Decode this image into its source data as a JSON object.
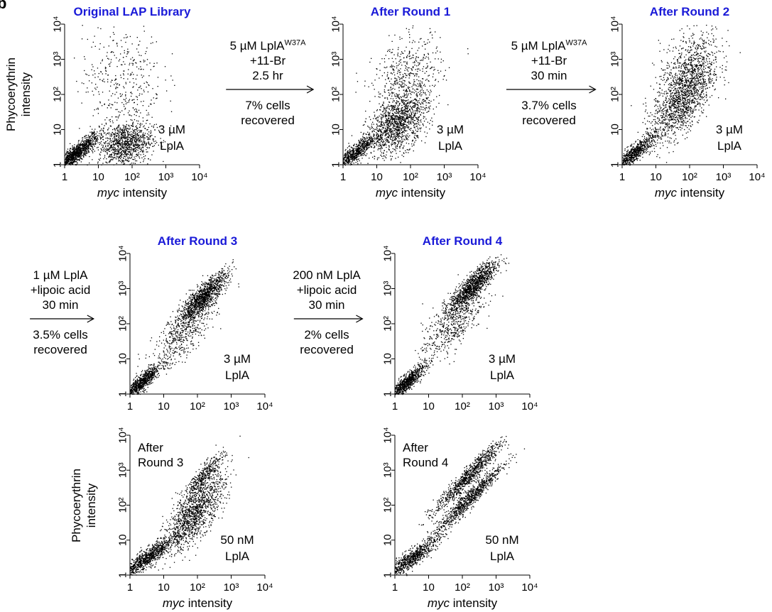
{
  "figure_label": "b",
  "chart_data": [
    {
      "type": "scatter",
      "title": "Original LAP Library",
      "xlabel_italic": "myc",
      "xlabel_rest": " intensity",
      "ylabel": [
        "Phycoerythrin",
        "intensity"
      ],
      "xscale": "log",
      "yscale": "log",
      "xlim": [
        1,
        10000
      ],
      "ylim": [
        1,
        10000
      ],
      "xticks": [
        "1",
        "10",
        "10²",
        "10³",
        "10⁴"
      ],
      "yticks": [
        "1",
        "10",
        "10²",
        "10³",
        "10⁴"
      ],
      "annotation": [
        "3 µM",
        "LplA"
      ],
      "populations": [
        {
          "x_center": 2,
          "y_center": 2,
          "spread_x": 0.35,
          "spread_y": 0.3,
          "corr": 0.9,
          "share": 0.45
        },
        {
          "x_center": 60,
          "y_center": 4,
          "spread_x": 0.4,
          "spread_y": 0.32,
          "corr": 0.2,
          "share": 0.4
        },
        {
          "x_center": 50,
          "y_center": 300,
          "spread_x": 0.6,
          "spread_y": 0.8,
          "corr": 0,
          "share": 0.15
        }
      ]
    },
    {
      "type": "scatter",
      "title": "After Round 1",
      "xlabel_italic": "myc",
      "xlabel_rest": " intensity",
      "xscale": "log",
      "yscale": "log",
      "xlim": [
        1,
        10000
      ],
      "ylim": [
        1,
        10000
      ],
      "xticks": [
        "1",
        "10",
        "10²",
        "10³",
        "10⁴"
      ],
      "yticks": [
        "1",
        "10",
        "10²",
        "10³",
        "10⁴"
      ],
      "annotation": [
        "3 µM",
        "LplA"
      ],
      "populations": [
        {
          "x_center": 2,
          "y_center": 2,
          "spread_x": 0.35,
          "spread_y": 0.3,
          "corr": 0.9,
          "share": 0.3
        },
        {
          "x_center": 40,
          "y_center": 15,
          "spread_x": 0.45,
          "spread_y": 0.45,
          "corr": 0.5,
          "share": 0.5
        },
        {
          "x_center": 80,
          "y_center": 300,
          "spread_x": 0.5,
          "spread_y": 0.6,
          "corr": 0.3,
          "share": 0.2
        }
      ]
    },
    {
      "type": "scatter",
      "title": "After Round 2",
      "xlabel_italic": "myc",
      "xlabel_rest": " intensity",
      "xscale": "log",
      "yscale": "log",
      "xlim": [
        1,
        10000
      ],
      "ylim": [
        1,
        10000
      ],
      "xticks": [
        "1",
        "10",
        "10²",
        "10³",
        "10⁴"
      ],
      "yticks": [
        "1",
        "10",
        "10²",
        "10³",
        "10⁴"
      ],
      "annotation": [
        "3 µM",
        "LplA"
      ],
      "populations": [
        {
          "x_center": 2,
          "y_center": 2,
          "spread_x": 0.35,
          "spread_y": 0.3,
          "corr": 0.9,
          "share": 0.3
        },
        {
          "x_center": 60,
          "y_center": 80,
          "spread_x": 0.45,
          "spread_y": 0.6,
          "corr": 0.6,
          "share": 0.55
        },
        {
          "x_center": 100,
          "y_center": 1000,
          "spread_x": 0.45,
          "spread_y": 0.5,
          "corr": 0.4,
          "share": 0.15
        }
      ]
    },
    {
      "type": "scatter",
      "title": "After Round 3",
      "xlabel_italic": "",
      "xlabel_rest": "",
      "xscale": "log",
      "yscale": "log",
      "xlim": [
        1,
        10000
      ],
      "ylim": [
        1,
        10000
      ],
      "xticks": [
        "1",
        "10",
        "10²",
        "10³",
        "10⁴"
      ],
      "yticks": [
        "1",
        "10",
        "10²",
        "10³",
        "10⁴"
      ],
      "annotation": [
        "3 µM",
        "LplA"
      ],
      "populations": [
        {
          "x_center": 2,
          "y_center": 2,
          "spread_x": 0.3,
          "spread_y": 0.28,
          "corr": 0.9,
          "share": 0.35
        },
        {
          "x_center": 150,
          "y_center": 600,
          "spread_x": 0.35,
          "spread_y": 0.35,
          "corr": 0.85,
          "share": 0.45
        },
        {
          "x_center": 40,
          "y_center": 60,
          "spread_x": 0.45,
          "spread_y": 0.5,
          "corr": 0.7,
          "share": 0.2
        }
      ]
    },
    {
      "type": "scatter",
      "title": "After Round 4",
      "xlabel_italic": "",
      "xlabel_rest": "",
      "xscale": "log",
      "yscale": "log",
      "xlim": [
        1,
        10000
      ],
      "ylim": [
        1,
        10000
      ],
      "xticks": [
        "1",
        "10",
        "10²",
        "10³",
        "10⁴"
      ],
      "yticks": [
        "1",
        "10",
        "10²",
        "10³",
        "10⁴"
      ],
      "annotation": [
        "3 µM",
        "LplA"
      ],
      "populations": [
        {
          "x_center": 2,
          "y_center": 2,
          "spread_x": 0.3,
          "spread_y": 0.28,
          "corr": 0.9,
          "share": 0.35
        },
        {
          "x_center": 200,
          "y_center": 1200,
          "spread_x": 0.35,
          "spread_y": 0.35,
          "corr": 0.85,
          "share": 0.45
        },
        {
          "x_center": 50,
          "y_center": 100,
          "spread_x": 0.45,
          "spread_y": 0.5,
          "corr": 0.7,
          "share": 0.2
        }
      ]
    },
    {
      "type": "scatter",
      "title": "",
      "xlabel_italic": "myc",
      "xlabel_rest": " intensity",
      "ylabel": [
        "Phycoerythrin",
        "intensity"
      ],
      "xscale": "log",
      "yscale": "log",
      "xlim": [
        1,
        10000
      ],
      "ylim": [
        1,
        10000
      ],
      "xticks": [
        "1",
        "10",
        "10²",
        "10³",
        "10⁴"
      ],
      "yticks": [
        "1",
        "10",
        "10²",
        "10³",
        "10⁴"
      ],
      "annotation": [
        "50 nM",
        "LplA"
      ],
      "inset_label": [
        "After",
        "Round 3"
      ],
      "populations": [
        {
          "x_center": 3,
          "y_center": 3,
          "spread_x": 0.4,
          "spread_y": 0.3,
          "corr": 0.9,
          "share": 0.35
        },
        {
          "x_center": 80,
          "y_center": 60,
          "spread_x": 0.45,
          "spread_y": 0.55,
          "corr": 0.75,
          "share": 0.5
        },
        {
          "x_center": 150,
          "y_center": 700,
          "spread_x": 0.3,
          "spread_y": 0.35,
          "corr": 0.9,
          "share": 0.15
        }
      ]
    },
    {
      "type": "scatter",
      "title": "",
      "xlabel_italic": "myc",
      "xlabel_rest": " intensity",
      "xscale": "log",
      "yscale": "log",
      "xlim": [
        1,
        10000
      ],
      "ylim": [
        1,
        10000
      ],
      "xticks": [
        "1",
        "10",
        "10²",
        "10³",
        "10⁴"
      ],
      "yticks": [
        "1",
        "10",
        "10²",
        "10³",
        "10⁴"
      ],
      "annotation": [
        "50 nM",
        "LplA"
      ],
      "inset_label": [
        "After",
        "Round 4"
      ],
      "populations": [
        {
          "x_center": 3,
          "y_center": 3,
          "spread_x": 0.4,
          "spread_y": 0.3,
          "corr": 0.9,
          "share": 0.3
        },
        {
          "x_center": 150,
          "y_center": 700,
          "spread_x": 0.5,
          "spread_y": 0.5,
          "corr": 0.96,
          "share": 0.35
        },
        {
          "x_center": 150,
          "y_center": 150,
          "spread_x": 0.5,
          "spread_y": 0.5,
          "corr": 0.96,
          "share": 0.35
        }
      ]
    }
  ],
  "steps": [
    {
      "lines": [
        "5 µM LplA",
        "+11-Br",
        "2.5 hr"
      ],
      "sup": "W37A",
      "below": [
        "7% cells",
        "recovered"
      ]
    },
    {
      "lines": [
        "5 µM LplA",
        "+11-Br",
        "30 min"
      ],
      "sup": "W37A",
      "below": [
        "3.7% cells",
        "recovered"
      ]
    },
    {
      "lines": [
        "1 µM LplA",
        "+lipoic acid",
        "30 min"
      ],
      "sup": "",
      "below": [
        "3.5% cells",
        "recovered"
      ]
    },
    {
      "lines": [
        "200 nM LplA",
        "+lipoic acid",
        "30 min"
      ],
      "sup": "",
      "below": [
        "2% cells",
        "recovered"
      ]
    }
  ],
  "colors": {
    "title": "#1a1ad8",
    "dots": "#000000"
  }
}
